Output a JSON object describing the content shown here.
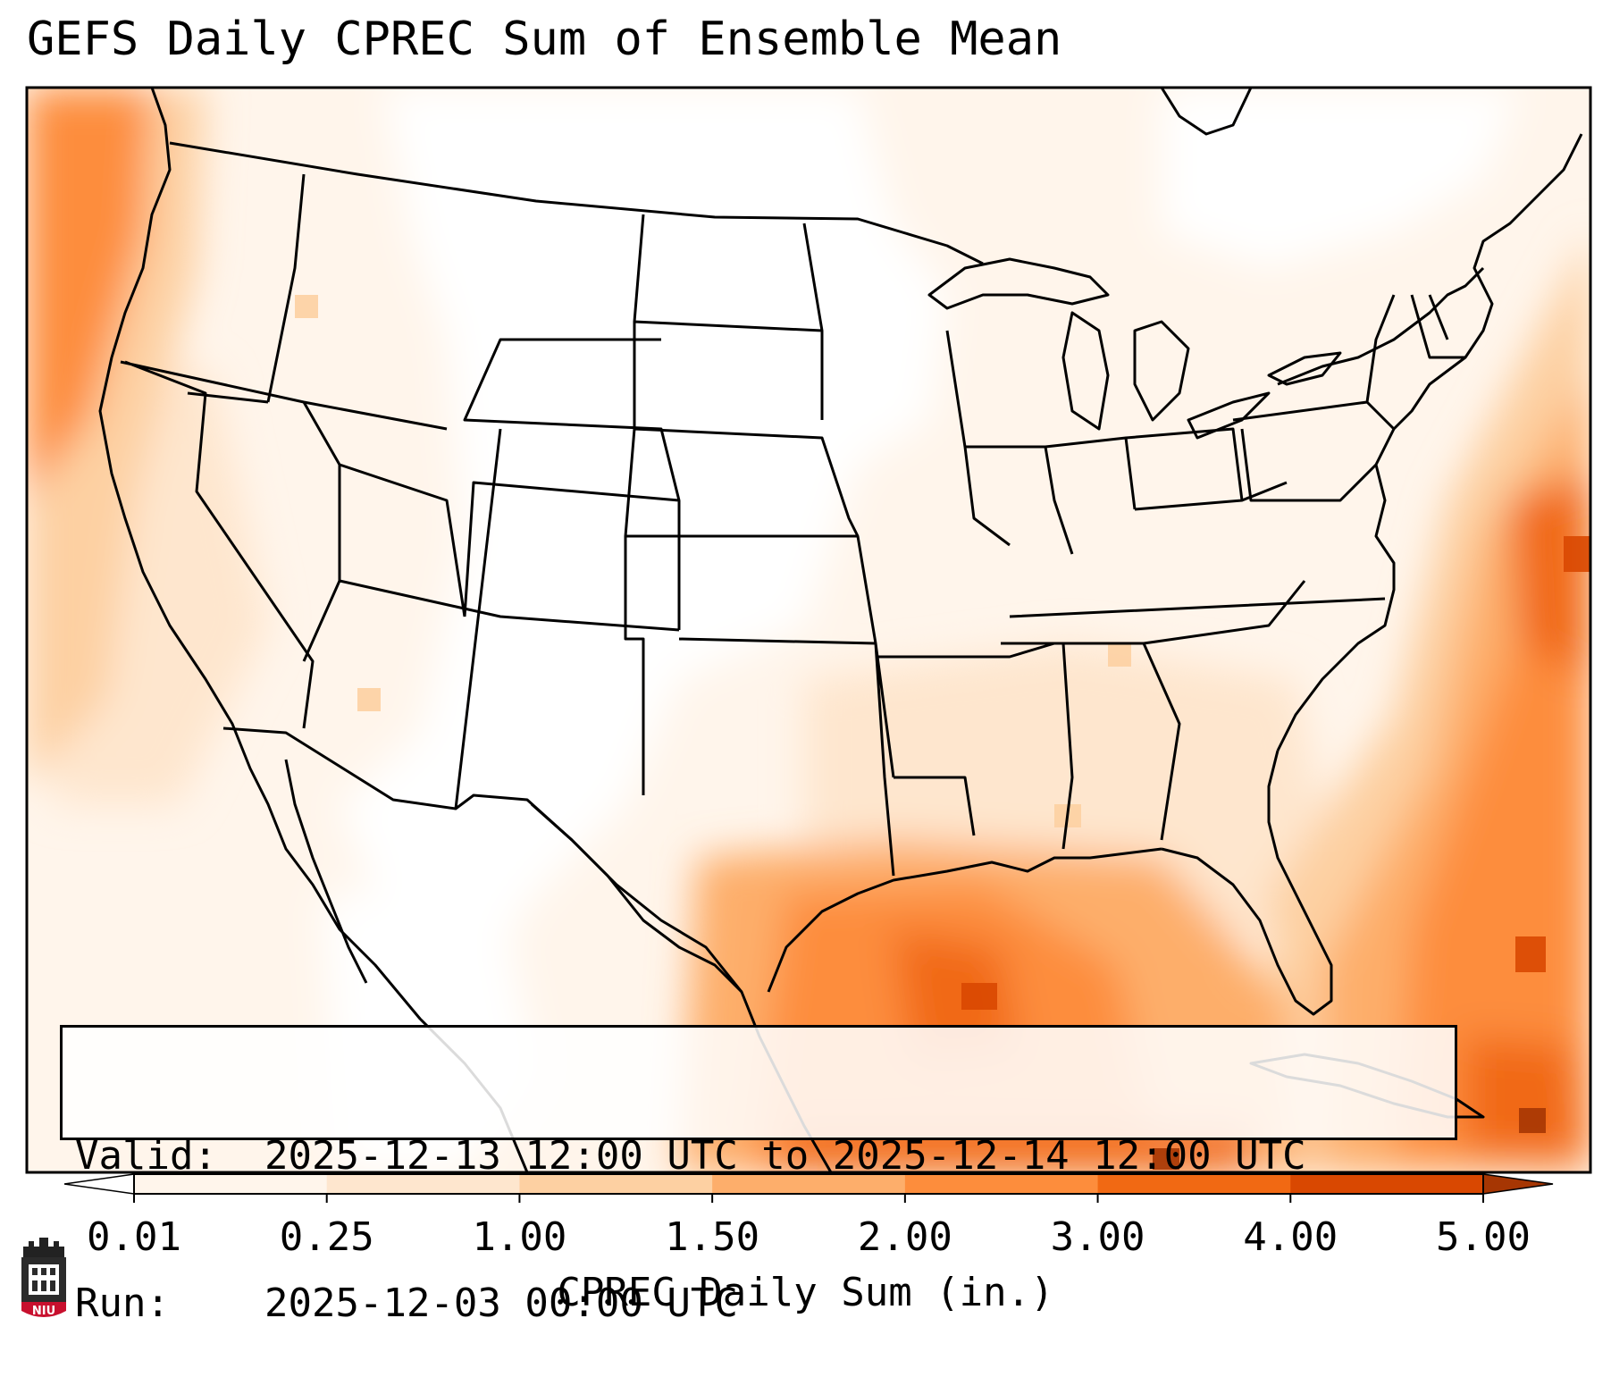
{
  "title": "GEFS Daily CPREC Sum of Ensemble Mean",
  "info": {
    "valid_label": "Valid:",
    "valid_value": "2025-12-13 12:00 UTC to 2025-12-14 12:00 UTC",
    "run_label": "Run:",
    "run_value": "2025-12-03 00:00 UTC"
  },
  "colorbar": {
    "title": "CPREC Daily Sum (in.)",
    "ticks": [
      "0.01",
      "0.25",
      "1.00",
      "1.50",
      "2.00",
      "3.00",
      "4.00",
      "5.00"
    ],
    "colors": [
      "#fff5eb",
      "#fee6ce",
      "#fdd0a2",
      "#fdae6b",
      "#fd8d3c",
      "#f16913",
      "#d94801"
    ],
    "extend_low_color": "#ffffff",
    "extend_high_color": "#a63603"
  },
  "logo": {
    "text": "NIU",
    "color": "#c8102e"
  }
}
